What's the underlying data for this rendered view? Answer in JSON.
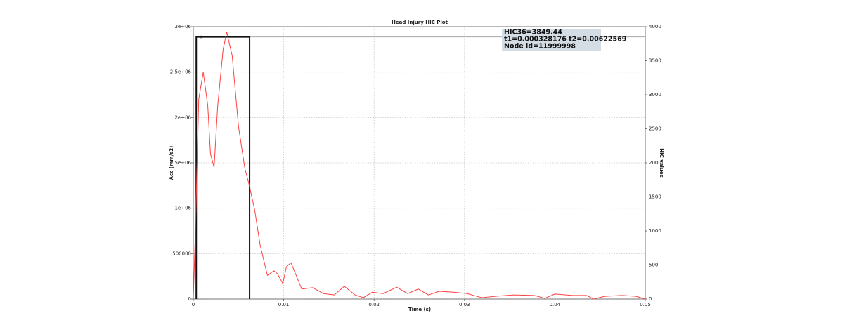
{
  "chart_data": {
    "type": "line",
    "title": "Head Injury HIC Plot",
    "x_label": "Time (s)",
    "y_label": "Acc (mm/s2)",
    "y2_label": "HIC values",
    "annotation": [
      "HIC36=3849.44",
      "t1=0.000328176 t2=0.00622569",
      "Node id=11999998"
    ],
    "xlim": [
      0,
      0.05
    ],
    "xticks": [
      0,
      0.01,
      0.02,
      0.03,
      0.04,
      0.05
    ],
    "ylim": [
      0,
      3000000
    ],
    "yticks": [
      0,
      500000,
      {
        "value": 1000000,
        "label": "1e+06"
      },
      {
        "value": 1500000,
        "label": "1.5e+06"
      },
      {
        "value": 2000000,
        "label": "2e+06"
      },
      {
        "value": 2500000,
        "label": "2.5e+06"
      },
      {
        "value": 3000000,
        "label": "3e+06"
      }
    ],
    "y2lim": [
      0,
      4000
    ],
    "y2ticks": [
      0,
      500,
      1000,
      1500,
      2000,
      2500,
      3000,
      3500,
      4000
    ],
    "grid": true,
    "series": [
      {
        "color": "#ff4040",
        "x": [
          0,
          0.00023,
          0.0006,
          0.0011,
          0.0016,
          0.0019,
          0.0023,
          0.0027,
          0.0033,
          0.0037,
          0.0043,
          0.005,
          0.0057,
          0.0062,
          0.0068,
          0.0074,
          0.0082,
          0.0089,
          0.0093,
          0.0099,
          0.0103,
          0.0108,
          0.0113,
          0.012,
          0.0132,
          0.0144,
          0.0156,
          0.0167,
          0.0179,
          0.0188,
          0.0198,
          0.021,
          0.0225,
          0.0237,
          0.0249,
          0.026,
          0.0272,
          0.0288,
          0.0303,
          0.0319,
          0.0334,
          0.0354,
          0.0377,
          0.0389,
          0.04,
          0.042,
          0.0435,
          0.0443,
          0.0455,
          0.0474,
          0.049,
          0.05
        ],
        "values": [
          0,
          740000,
          2200000,
          2500000,
          2130000,
          1600000,
          1450000,
          2130000,
          2750000,
          2940000,
          2680000,
          1900000,
          1440000,
          1250000,
          975000,
          590000,
          260000,
          310000,
          280000,
          170000,
          355000,
          400000,
          280000,
          110000,
          125000,
          60000,
          45000,
          140000,
          45000,
          15000,
          75000,
          60000,
          130000,
          60000,
          110000,
          45000,
          85000,
          75000,
          60000,
          15000,
          30000,
          45000,
          40000,
          8000,
          55000,
          40000,
          40000,
          0,
          30000,
          40000,
          30000,
          0
        ]
      }
    ],
    "hic_window": {
      "color": "#111111",
      "axis": "y2",
      "t1": 0.000328176,
      "t2": 0.00622569,
      "value": 3849.44
    }
  }
}
